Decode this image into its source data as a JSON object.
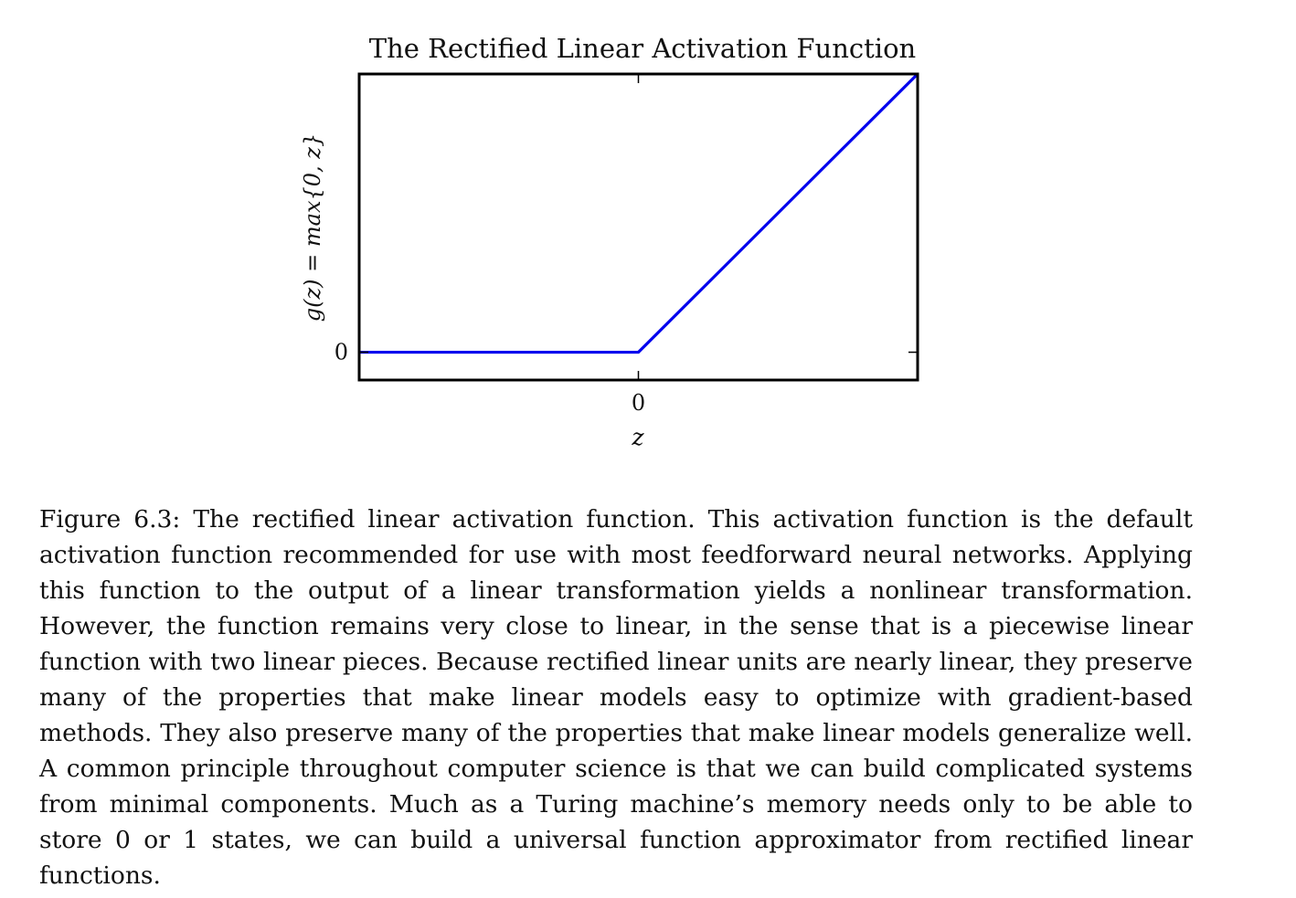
{
  "chart_data": {
    "type": "line",
    "title": "The Rectified Linear Activation Function",
    "xlabel": "z",
    "ylabel": "g(z) = max{0, z}",
    "x_ticks": [
      {
        "value": 0,
        "label": "0"
      }
    ],
    "y_ticks": [
      {
        "value": 0,
        "label": "0"
      }
    ],
    "xlim": [
      -1,
      1
    ],
    "ylim": [
      -0.1,
      1
    ],
    "grid": false,
    "series": [
      {
        "color": "#0000ee",
        "x": [
          -1,
          0,
          1
        ],
        "y": [
          0,
          0,
          1
        ]
      }
    ]
  },
  "caption": {
    "label": "Figure 6.3:",
    "text": "The rectified linear activation function. This activation function is the default activation function recommended for use with most feedforward neural networks. Applying this function to the output of a linear transformation yields a nonlinear transformation. However, the function remains very close to linear, in the sense that is a piecewise linear function with two linear pieces. Because rectified linear units are nearly linear, they preserve many of the properties that make linear models easy to optimize with gradient-based methods. They also preserve many of the properties that make linear models generalize well. A common principle throughout computer science is that we can build complicated systems from minimal components. Much as a Turing machine’s memory needs only to be able to store 0 or 1 states, we can build a universal function approximator from rectified linear functions."
  }
}
